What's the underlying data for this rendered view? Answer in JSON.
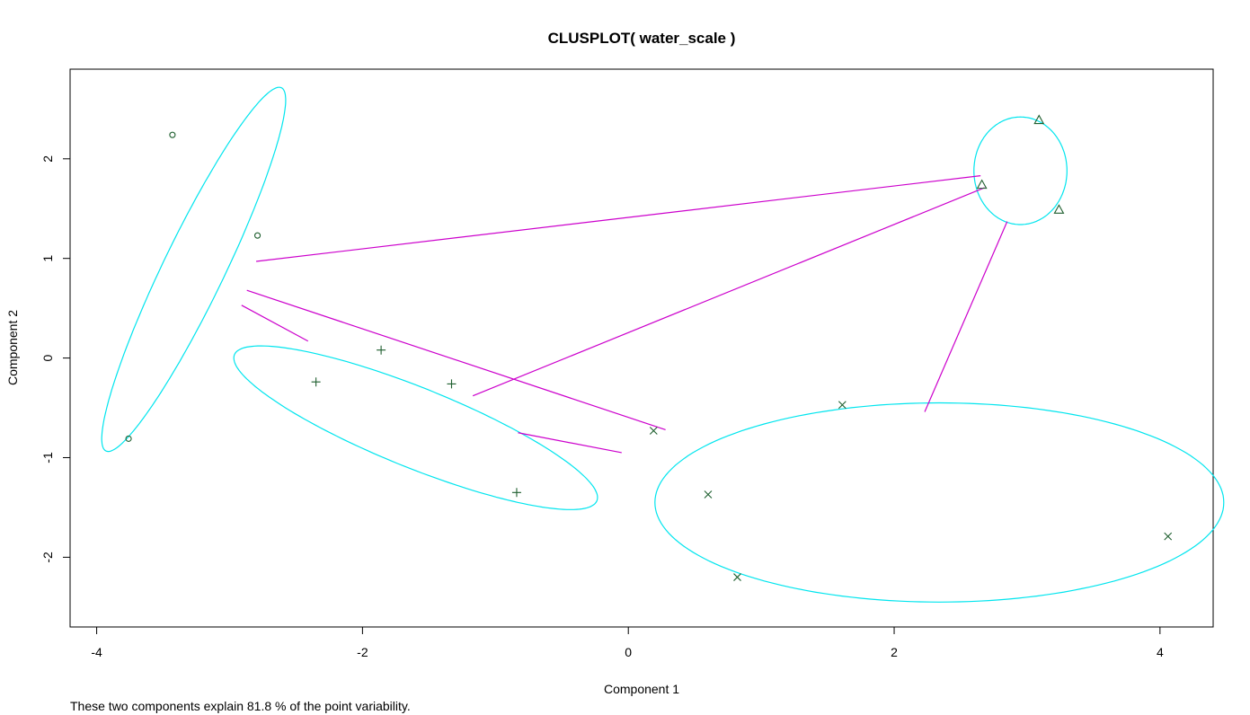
{
  "chart_data": {
    "type": "scatter",
    "title": "CLUSPLOT( water_scale )",
    "xlabel": "Component 1",
    "ylabel": "Component 2",
    "subtitle": "These two components explain 81.8 % of the point variability.",
    "xlim": [
      -4.2,
      4.4
    ],
    "ylim": [
      -2.7,
      2.9
    ],
    "xticks": [
      -4,
      -2,
      0,
      2,
      4
    ],
    "yticks": [
      -2,
      -1,
      0,
      1,
      2
    ],
    "grid": false,
    "colors": {
      "ellipse": "#00e5ee",
      "line": "#cc00cc",
      "points": "#1f5f2f",
      "axis": "#000000"
    },
    "clusters": [
      {
        "id": 1,
        "marker": "circle",
        "points": [
          [
            -3.43,
            2.24
          ],
          [
            -2.79,
            1.23
          ],
          [
            -3.76,
            -0.81
          ]
        ],
        "ellipse": {
          "cx": -3.27,
          "cy": 0.89,
          "rx": 1.94,
          "ry": 0.24,
          "angle_deg": 70.3
        }
      },
      {
        "id": 2,
        "marker": "plus",
        "points": [
          [
            -1.86,
            0.08
          ],
          [
            -2.35,
            -0.24
          ],
          [
            -1.33,
            -0.26
          ],
          [
            -0.84,
            -1.35
          ]
        ],
        "ellipse": {
          "cx": -1.6,
          "cy": -0.7,
          "rx": 1.55,
          "ry": 0.38,
          "angle_deg": -29
        }
      },
      {
        "id": 3,
        "marker": "cross",
        "points": [
          [
            1.61,
            -0.47
          ],
          [
            0.19,
            -0.73
          ],
          [
            0.6,
            -1.37
          ],
          [
            0.82,
            -2.2
          ],
          [
            4.06,
            -1.79
          ]
        ],
        "ellipse": {
          "cx": 2.34,
          "cy": -1.45,
          "rx": 2.14,
          "ry": 1.0,
          "angle_deg": 0
        }
      },
      {
        "id": 4,
        "marker": "triangle",
        "points": [
          [
            3.09,
            2.39
          ],
          [
            2.66,
            1.74
          ],
          [
            3.24,
            1.49
          ]
        ],
        "ellipse": {
          "cx": 2.95,
          "cy": 1.88,
          "rx": 0.35,
          "ry": 0.54,
          "angle_deg": 0
        }
      }
    ],
    "connecting_lines": [
      {
        "from_cluster": 1,
        "to_cluster": 4,
        "x": [
          -2.8,
          2.65
        ],
        "y": [
          0.97,
          1.83
        ]
      },
      {
        "from_cluster": 1,
        "to_cluster": 3,
        "x": [
          -2.87,
          0.28
        ],
        "y": [
          0.68,
          -0.72
        ]
      },
      {
        "from_cluster": 1,
        "to_cluster": 2,
        "x": [
          -2.91,
          -2.41
        ],
        "y": [
          0.53,
          0.17
        ]
      },
      {
        "from_cluster": 2,
        "to_cluster": 4,
        "x": [
          -1.17,
          2.68
        ],
        "y": [
          -0.38,
          1.71
        ]
      },
      {
        "from_cluster": 2,
        "to_cluster": 3,
        "x": [
          -0.83,
          -0.05
        ],
        "y": [
          -0.75,
          -0.95
        ]
      },
      {
        "from_cluster": 3,
        "to_cluster": 4,
        "x": [
          2.23,
          2.85
        ],
        "y": [
          -0.54,
          1.37
        ]
      }
    ]
  }
}
